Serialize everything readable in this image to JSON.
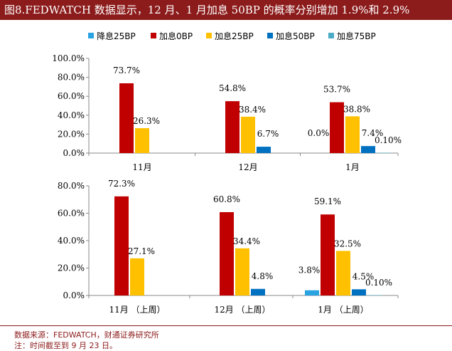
{
  "title": "图8.FEDWATCH 数据显示，12 月、1 月加息 50BP 的概率分别增加 1.9%和 2.9%",
  "legend": [
    "降息25BP",
    "加息0BP",
    "加息25BP",
    "加息50BP",
    "加息75BP"
  ],
  "colors": [
    "#29a3e2",
    "#c00000",
    "#ffc000",
    "#0070c0",
    "#4bacc6"
  ],
  "chart_data": [
    {
      "type": "bar",
      "categories": [
        "11月",
        "12月",
        "1月"
      ],
      "ylim": [
        0,
        100
      ],
      "yticks": [
        "0.0%",
        "20.0%",
        "40.0%",
        "60.0%",
        "80.0%",
        "100.0%"
      ],
      "series": [
        {
          "name": "降息25BP",
          "values": [
            null,
            null,
            null
          ]
        },
        {
          "name": "加息0BP",
          "values": [
            73.7,
            54.8,
            53.7
          ]
        },
        {
          "name": "加息25BP",
          "values": [
            26.3,
            38.4,
            38.8
          ]
        },
        {
          "name": "加息50BP",
          "values": [
            null,
            6.7,
            7.4
          ]
        },
        {
          "name": "加息75BP",
          "values": [
            null,
            null,
            0.1
          ]
        }
      ],
      "labels": [
        [
          null,
          null,
          "0.0%"
        ],
        [
          "73.7%",
          "54.8%",
          "53.7%"
        ],
        [
          "26.3%",
          "38.4%",
          "38.8%"
        ],
        [
          null,
          "6.7%",
          "7.4%"
        ],
        [
          null,
          null,
          "0.10%"
        ]
      ]
    },
    {
      "type": "bar",
      "categories": [
        "11月 （上周）",
        "12月 （上周）",
        "1月 （上周）"
      ],
      "ylim": [
        0,
        80
      ],
      "yticks": [
        "0.0%",
        "20.0%",
        "40.0%",
        "60.0%",
        "80.0%"
      ],
      "series": [
        {
          "name": "降息25BP",
          "values": [
            null,
            null,
            3.8
          ]
        },
        {
          "name": "加息0BP",
          "values": [
            72.3,
            60.8,
            59.1
          ]
        },
        {
          "name": "加息25BP",
          "values": [
            27.1,
            34.4,
            32.5
          ]
        },
        {
          "name": "加息50BP",
          "values": [
            null,
            4.8,
            4.5
          ]
        },
        {
          "name": "加息75BP",
          "values": [
            null,
            null,
            0.1
          ]
        }
      ],
      "labels": [
        [
          null,
          null,
          "3.8%"
        ],
        [
          "72.3%",
          "60.8%",
          "59.1%"
        ],
        [
          "27.1%",
          "34.4%",
          "32.5%"
        ],
        [
          null,
          "4.8%",
          "4.5%"
        ],
        [
          null,
          null,
          "0.10%"
        ]
      ]
    }
  ],
  "source": "数据来源：FEDWATCH，财通证券研究所",
  "note": "注：时间截至到 9 月 23 日。"
}
